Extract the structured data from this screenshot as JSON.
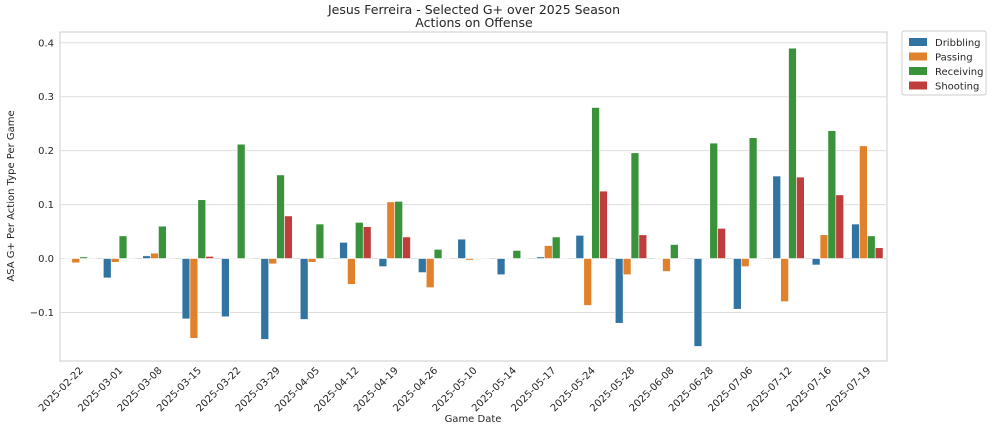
{
  "chart_data": {
    "type": "bar",
    "title": "Jesus Ferreira - Selected G+ over 2025 Season",
    "subtitle": "Actions on Offense",
    "xlabel": "Game Date",
    "ylabel": "ASA G+ Per Action Type Per Game",
    "ylim": [
      -0.19,
      0.42
    ],
    "yticks": [
      -0.1,
      0.0,
      0.1,
      0.2,
      0.3,
      0.4
    ],
    "ytick_labels": [
      "−0.1",
      "0.0",
      "0.1",
      "0.2",
      "0.3",
      "0.4"
    ],
    "grid": true,
    "legend_position": "outside-top-right",
    "categories": [
      "2025-02-22",
      "2025-03-01",
      "2025-03-08",
      "2025-03-15",
      "2025-03-22",
      "2025-03-29",
      "2025-04-05",
      "2025-04-12",
      "2025-04-19",
      "2025-04-26",
      "2025-05-10",
      "2025-05-14",
      "2025-05-17",
      "2025-05-24",
      "2025-05-28",
      "2025-06-08",
      "2025-06-28",
      "2025-07-06",
      "2025-07-12",
      "2025-07-16",
      "2025-07-19"
    ],
    "series": [
      {
        "name": "Dribbling",
        "color": "#3274a1",
        "values": [
          0.0,
          -0.036,
          0.005,
          -0.112,
          -0.108,
          -0.15,
          -0.113,
          0.03,
          -0.015,
          -0.026,
          0.036,
          -0.03,
          0.003,
          0.043,
          -0.12,
          0.0,
          -0.163,
          -0.094,
          0.153,
          -0.012,
          0.064
        ]
      },
      {
        "name": "Passing",
        "color": "#e1812c",
        "values": [
          -0.008,
          -0.007,
          0.01,
          -0.148,
          0.0,
          -0.01,
          -0.007,
          -0.048,
          0.105,
          -0.054,
          -0.003,
          0.0,
          0.024,
          -0.087,
          -0.03,
          -0.024,
          0.0,
          -0.015,
          -0.08,
          0.044,
          0.209
        ]
      },
      {
        "name": "Receiving",
        "color": "#3a923a",
        "values": [
          0.003,
          0.042,
          0.06,
          0.109,
          0.212,
          0.155,
          0.064,
          0.067,
          0.106,
          0.017,
          0.0,
          0.015,
          0.04,
          0.28,
          0.196,
          0.026,
          0.214,
          0.224,
          0.39,
          0.237,
          0.042
        ]
      },
      {
        "name": "Shooting",
        "color": "#c03d3e",
        "values": [
          0.0,
          0.0,
          0.0,
          0.004,
          0.0,
          0.079,
          0.0,
          0.059,
          0.04,
          0.0,
          0.0,
          0.0,
          0.0,
          0.125,
          0.044,
          0.0,
          0.056,
          0.0,
          0.151,
          0.118,
          0.02
        ]
      }
    ]
  }
}
